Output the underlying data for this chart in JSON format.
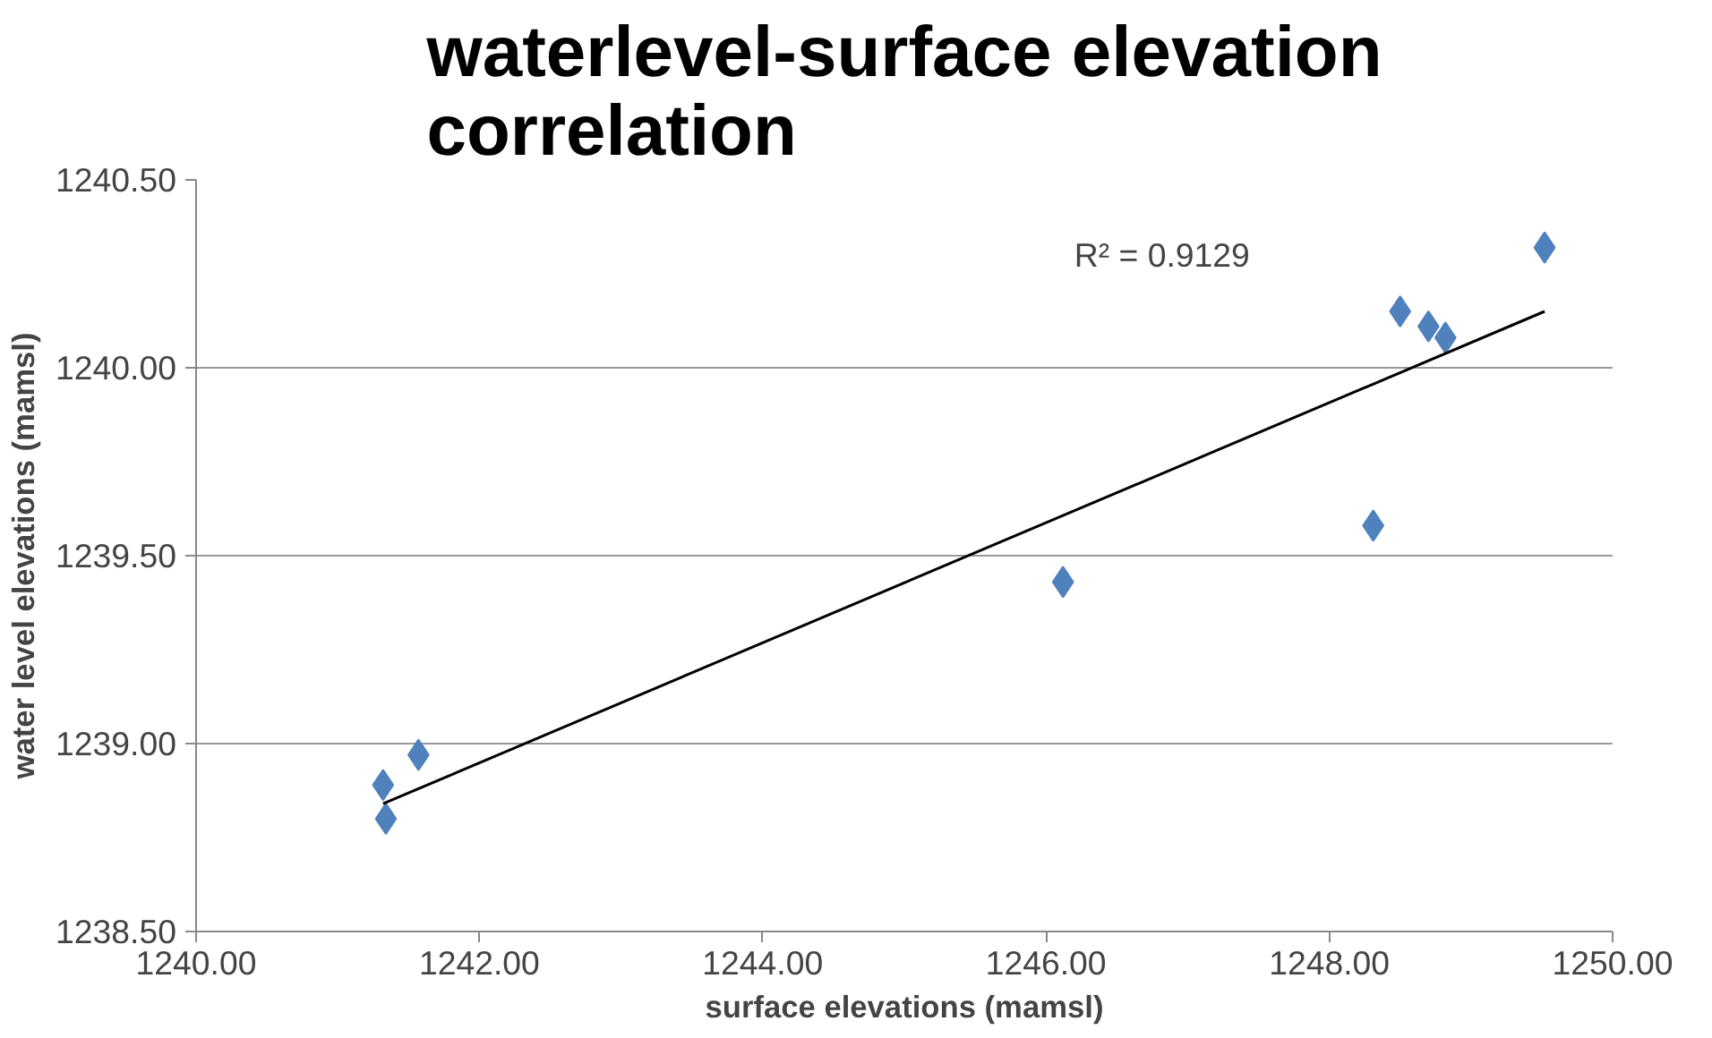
{
  "chart_data": {
    "type": "scatter",
    "title": "waterlevel-surface elevation correlation",
    "xlabel": "surface elevations (mamsl)",
    "ylabel": "water level elevations (mamsl)",
    "x": [
      1241.32,
      1241.34,
      1241.57,
      1246.12,
      1248.31,
      1248.5,
      1248.7,
      1248.82,
      1249.52
    ],
    "series": [
      {
        "color": "#4f81bd",
        "values": [
          1238.89,
          1238.8,
          1238.97,
          1239.43,
          1239.58,
          1240.15,
          1240.11,
          1240.08,
          1240.32
        ]
      },
      {
        "type": "line",
        "color": "#000000",
        "marker": "none",
        "x": [
          1241.32,
          1249.52
        ],
        "values": [
          1238.84,
          1240.15
        ]
      }
    ],
    "annotations": [
      "R² = 0.9129"
    ],
    "marker": "diamond",
    "grid": "y",
    "xlim": [
      1240,
      1250
    ],
    "xticks": [
      {
        "value": 1240,
        "label": "1240.00"
      },
      {
        "value": 1242,
        "label": "1242.00"
      },
      {
        "value": 1244,
        "label": "1244.00"
      },
      {
        "value": 1246,
        "label": "1246.00"
      },
      {
        "value": 1248,
        "label": "1248.00"
      },
      {
        "value": 1250,
        "label": "1250.00"
      }
    ],
    "ylim": [
      1238.5,
      1240.5
    ],
    "yticks": [
      {
        "value": 1238.5,
        "label": "1238.50"
      },
      {
        "value": 1239,
        "label": "1239.00"
      },
      {
        "value": 1239.5,
        "label": "1239.50"
      },
      {
        "value": 1240,
        "label": "1240.00"
      },
      {
        "value": 1240.5,
        "label": "1240.50"
      }
    ]
  }
}
